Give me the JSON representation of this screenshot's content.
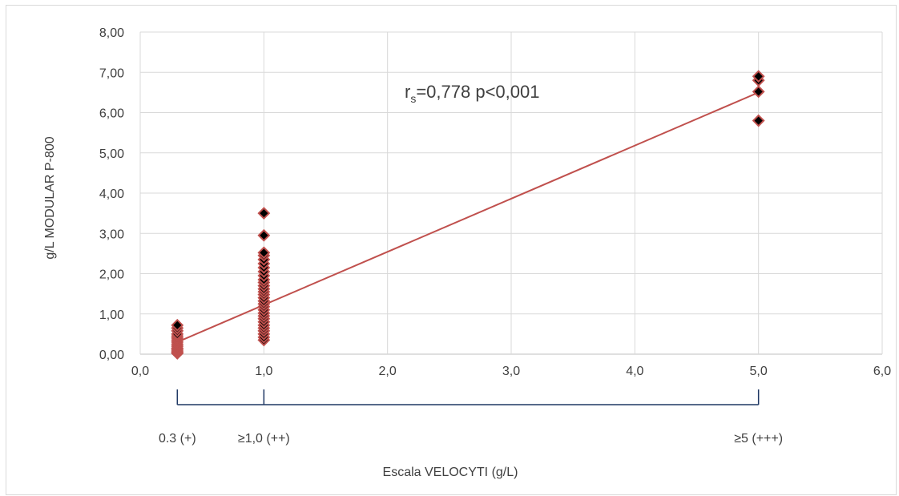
{
  "chart_data": {
    "type": "scatter",
    "title": "",
    "xlabel": "Escala VELOCYTI (g/L)",
    "ylabel": "g/L  MODULAR P-800",
    "xlim": [
      0,
      6
    ],
    "ylim": [
      0,
      8
    ],
    "x_ticks": [
      0,
      1,
      2,
      3,
      4,
      5,
      6
    ],
    "y_ticks": [
      0,
      1,
      2,
      3,
      4,
      5,
      6,
      7,
      8
    ],
    "x_tick_labels": [
      "0,0",
      "1,0",
      "2,0",
      "3,0",
      "4,0",
      "5,0",
      "6,0"
    ],
    "y_tick_labels": [
      "0,00",
      "1,00",
      "2,00",
      "3,00",
      "4,00",
      "5,00",
      "6,00",
      "7,00",
      "8,00"
    ],
    "grid": true,
    "marker": "diamond",
    "marker_color": "#000000",
    "marker_edge_color": "#c0504d",
    "trend_color": "#c0504d",
    "axis_color": "#1f3864",
    "points": [
      [
        0.3,
        0.02
      ],
      [
        0.3,
        0.05
      ],
      [
        0.3,
        0.08
      ],
      [
        0.3,
        0.12
      ],
      [
        0.3,
        0.15
      ],
      [
        0.3,
        0.2
      ],
      [
        0.3,
        0.25
      ],
      [
        0.3,
        0.3
      ],
      [
        0.3,
        0.35
      ],
      [
        0.3,
        0.4
      ],
      [
        0.3,
        0.45
      ],
      [
        0.3,
        0.5
      ],
      [
        0.3,
        0.58
      ],
      [
        0.3,
        0.65
      ],
      [
        0.3,
        0.72
      ],
      [
        1,
        0.35
      ],
      [
        1,
        0.42
      ],
      [
        1,
        0.5
      ],
      [
        1,
        0.58
      ],
      [
        1,
        0.65
      ],
      [
        1,
        0.72
      ],
      [
        1,
        0.8
      ],
      [
        1,
        0.88
      ],
      [
        1,
        0.95
      ],
      [
        1,
        1.02
      ],
      [
        1,
        1.1
      ],
      [
        1,
        1.18
      ],
      [
        1,
        1.25
      ],
      [
        1,
        1.32
      ],
      [
        1,
        1.4
      ],
      [
        1,
        1.48
      ],
      [
        1,
        1.55
      ],
      [
        1,
        1.62
      ],
      [
        1,
        1.7
      ],
      [
        1,
        1.78
      ],
      [
        1,
        1.85
      ],
      [
        1,
        1.95
      ],
      [
        1,
        2.05
      ],
      [
        1,
        2.15
      ],
      [
        1,
        2.25
      ],
      [
        1,
        2.35
      ],
      [
        1,
        2.45
      ],
      [
        1,
        2.52
      ],
      [
        1,
        2.95
      ],
      [
        1,
        3.5
      ],
      [
        5,
        5.8
      ],
      [
        5,
        6.52
      ],
      [
        5,
        6.8
      ],
      [
        5,
        6.9
      ]
    ],
    "trendline": {
      "x": [
        0.3,
        5
      ],
      "y": [
        0.3,
        6.5
      ]
    },
    "annotation": {
      "r_main": "r",
      "r_sub": "s",
      "text": "=0,778  p<0,001"
    },
    "scale_categories": [
      {
        "x": 0.3,
        "label": "0.3 (+)"
      },
      {
        "x": 1,
        "label": "≥1,0 (++)"
      },
      {
        "x": 5,
        "label": "≥5 (+++)"
      }
    ]
  }
}
